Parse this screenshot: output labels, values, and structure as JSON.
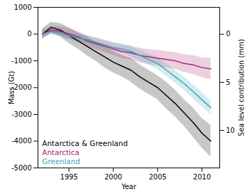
{
  "chart_data": {
    "type": "line",
    "x_label": "Year",
    "y_label": "Mass (Gt)",
    "y2_label": "Sea level contribution (mm)",
    "x": [
      1992,
      1993,
      1994,
      1995,
      1996,
      1997,
      1998,
      1999,
      2000,
      2001,
      2002,
      2003,
      2004,
      2005,
      2006,
      2007,
      2008,
      2009,
      2010,
      2011
    ],
    "xlim": [
      1991.5,
      2012
    ],
    "xticks": [
      1995,
      2000,
      2005,
      2010
    ],
    "ylim": [
      -5000,
      1000
    ],
    "yticks": [
      -5000,
      -4000,
      -3000,
      -2000,
      -1000,
      0,
      1000
    ],
    "y2lim": [
      13.9,
      -2.8
    ],
    "y2ticks": [
      0,
      5,
      10
    ],
    "grid": false,
    "legend": "lower left",
    "series": [
      {
        "name": "Antarctica & Greenland",
        "color": "#000000",
        "values": [
          0,
          250,
          150,
          -50,
          -250,
          -450,
          -650,
          -850,
          -1050,
          -1200,
          -1350,
          -1600,
          -1800,
          -2000,
          -2300,
          -2600,
          -2950,
          -3300,
          -3700,
          -4000
        ],
        "lower": [
          -200,
          50,
          -100,
          -350,
          -550,
          -800,
          -1000,
          -1250,
          -1450,
          -1600,
          -1800,
          -2050,
          -2250,
          -2450,
          -2800,
          -3100,
          -3450,
          -3850,
          -4250,
          -4600
        ],
        "upper": [
          200,
          450,
          400,
          250,
          50,
          -100,
          -300,
          -450,
          -650,
          -800,
          -900,
          -1150,
          -1350,
          -1550,
          -1800,
          -2100,
          -2450,
          -2750,
          -3150,
          -3400
        ]
      },
      {
        "name": "Antarctica",
        "color": "#a8276f",
        "values": [
          0,
          150,
          100,
          0,
          -100,
          -250,
          -350,
          -450,
          -550,
          -650,
          -700,
          -800,
          -850,
          -900,
          -950,
          -1000,
          -1100,
          -1150,
          -1250,
          -1300
        ],
        "lower": [
          -150,
          0,
          -80,
          -200,
          -300,
          -450,
          -570,
          -680,
          -790,
          -900,
          -960,
          -1070,
          -1130,
          -1190,
          -1250,
          -1310,
          -1430,
          -1500,
          -1620,
          -1700
        ],
        "upper": [
          150,
          300,
          280,
          200,
          100,
          -50,
          -130,
          -220,
          -310,
          -400,
          -440,
          -530,
          -570,
          -610,
          -650,
          -690,
          -770,
          -800,
          -880,
          -900
        ]
      },
      {
        "name": "Greenland",
        "color": "#3aa5b5",
        "values": [
          0,
          100,
          50,
          -50,
          -150,
          -200,
          -300,
          -400,
          -500,
          -550,
          -650,
          -800,
          -950,
          -1100,
          -1350,
          -1600,
          -1850,
          -2150,
          -2450,
          -2750
        ],
        "lower": [
          -100,
          0,
          -60,
          -170,
          -280,
          -340,
          -450,
          -560,
          -670,
          -730,
          -840,
          -1000,
          -1160,
          -1320,
          -1580,
          -1840,
          -2100,
          -2410,
          -2720,
          -3000
        ],
        "upper": [
          100,
          200,
          160,
          70,
          -20,
          -60,
          -150,
          -240,
          -330,
          -370,
          -460,
          -600,
          -740,
          -880,
          -1120,
          -1360,
          -1600,
          -1890,
          -2180,
          -2500
        ]
      }
    ]
  }
}
